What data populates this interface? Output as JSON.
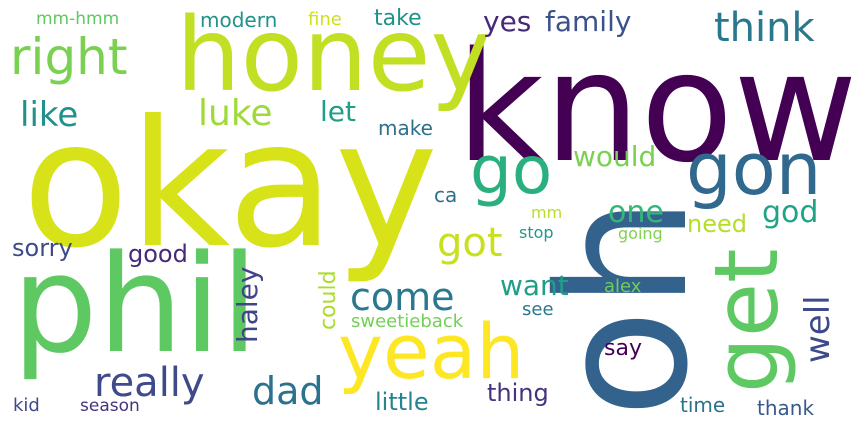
{
  "cloud": {
    "words": [
      {
        "text": "know",
        "color": "#440154",
        "vertical": false
      },
      {
        "text": "okay",
        "color": "#d8e219",
        "vertical": false
      },
      {
        "text": "oh",
        "color": "#33638d",
        "vertical": true
      },
      {
        "text": "phil",
        "color": "#5ec962",
        "vertical": false
      },
      {
        "text": "honey",
        "color": "#c2df23",
        "vertical": false
      },
      {
        "text": "yeah",
        "color": "#fde725",
        "vertical": false
      },
      {
        "text": "get",
        "color": "#5ec962",
        "vertical": true
      },
      {
        "text": "gon",
        "color": "#31688e",
        "vertical": false
      },
      {
        "text": "go",
        "color": "#2ab07f",
        "vertical": false
      },
      {
        "text": "right",
        "color": "#7ad151",
        "vertical": false
      },
      {
        "text": "think",
        "color": "#2a788e",
        "vertical": false
      },
      {
        "text": "really",
        "color": "#3e4a89",
        "vertical": false
      },
      {
        "text": "dad",
        "color": "#2c728e",
        "vertical": false
      },
      {
        "text": "come",
        "color": "#2a788e",
        "vertical": false
      },
      {
        "text": "got",
        "color": "#c8e020",
        "vertical": false
      },
      {
        "text": "luke",
        "color": "#9fda3a",
        "vertical": false
      },
      {
        "text": "like",
        "color": "#21918c",
        "vertical": false
      },
      {
        "text": "family",
        "color": "#3b528b",
        "vertical": false
      },
      {
        "text": "yes",
        "color": "#482878",
        "vertical": false
      },
      {
        "text": "god",
        "color": "#20a486",
        "vertical": false
      },
      {
        "text": "one",
        "color": "#35b779",
        "vertical": false
      },
      {
        "text": "well",
        "color": "#3e4a89",
        "vertical": true
      },
      {
        "text": "haley",
        "color": "#414487",
        "vertical": true
      },
      {
        "text": "want",
        "color": "#1f9e89",
        "vertical": false
      },
      {
        "text": "would",
        "color": "#7ad151",
        "vertical": false
      },
      {
        "text": "need",
        "color": "#b5de2b",
        "vertical": false
      },
      {
        "text": "thing",
        "color": "#46337e",
        "vertical": false
      },
      {
        "text": "little",
        "color": "#25848e",
        "vertical": false
      },
      {
        "text": "sorry",
        "color": "#3e4a89",
        "vertical": false
      },
      {
        "text": "good",
        "color": "#482878",
        "vertical": false
      },
      {
        "text": "let",
        "color": "#1f9e89",
        "vertical": false
      },
      {
        "text": "could",
        "color": "#addc30",
        "vertical": true
      },
      {
        "text": "say",
        "color": "#440154",
        "vertical": false
      },
      {
        "text": "take",
        "color": "#21918c",
        "vertical": false
      },
      {
        "text": "make",
        "color": "#2d708e",
        "vertical": false
      },
      {
        "text": "modern",
        "color": "#21918c",
        "vertical": false
      },
      {
        "text": "time",
        "color": "#2c728e",
        "vertical": false
      },
      {
        "text": "thank",
        "color": "#38598c",
        "vertical": false
      },
      {
        "text": "ca",
        "color": "#2c728e",
        "vertical": false
      },
      {
        "text": "fine",
        "color": "#d0e11c",
        "vertical": false
      },
      {
        "text": "sweetieback",
        "color": "#73d056",
        "vertical": false
      },
      {
        "text": "alex",
        "color": "#6ece58",
        "vertical": false
      },
      {
        "text": "stop",
        "color": "#1f9a8a",
        "vertical": false
      },
      {
        "text": "going",
        "color": "#7fd34e",
        "vertical": false
      },
      {
        "text": "see",
        "color": "#2a788e",
        "vertical": false
      },
      {
        "text": "mm",
        "color": "#b8de29",
        "vertical": false
      },
      {
        "text": "kid",
        "color": "#3e4a89",
        "vertical": false
      },
      {
        "text": "season",
        "color": "#46327e",
        "vertical": false
      },
      {
        "text": "mm-hmm",
        "color": "#5ec962",
        "vertical": false
      }
    ]
  }
}
